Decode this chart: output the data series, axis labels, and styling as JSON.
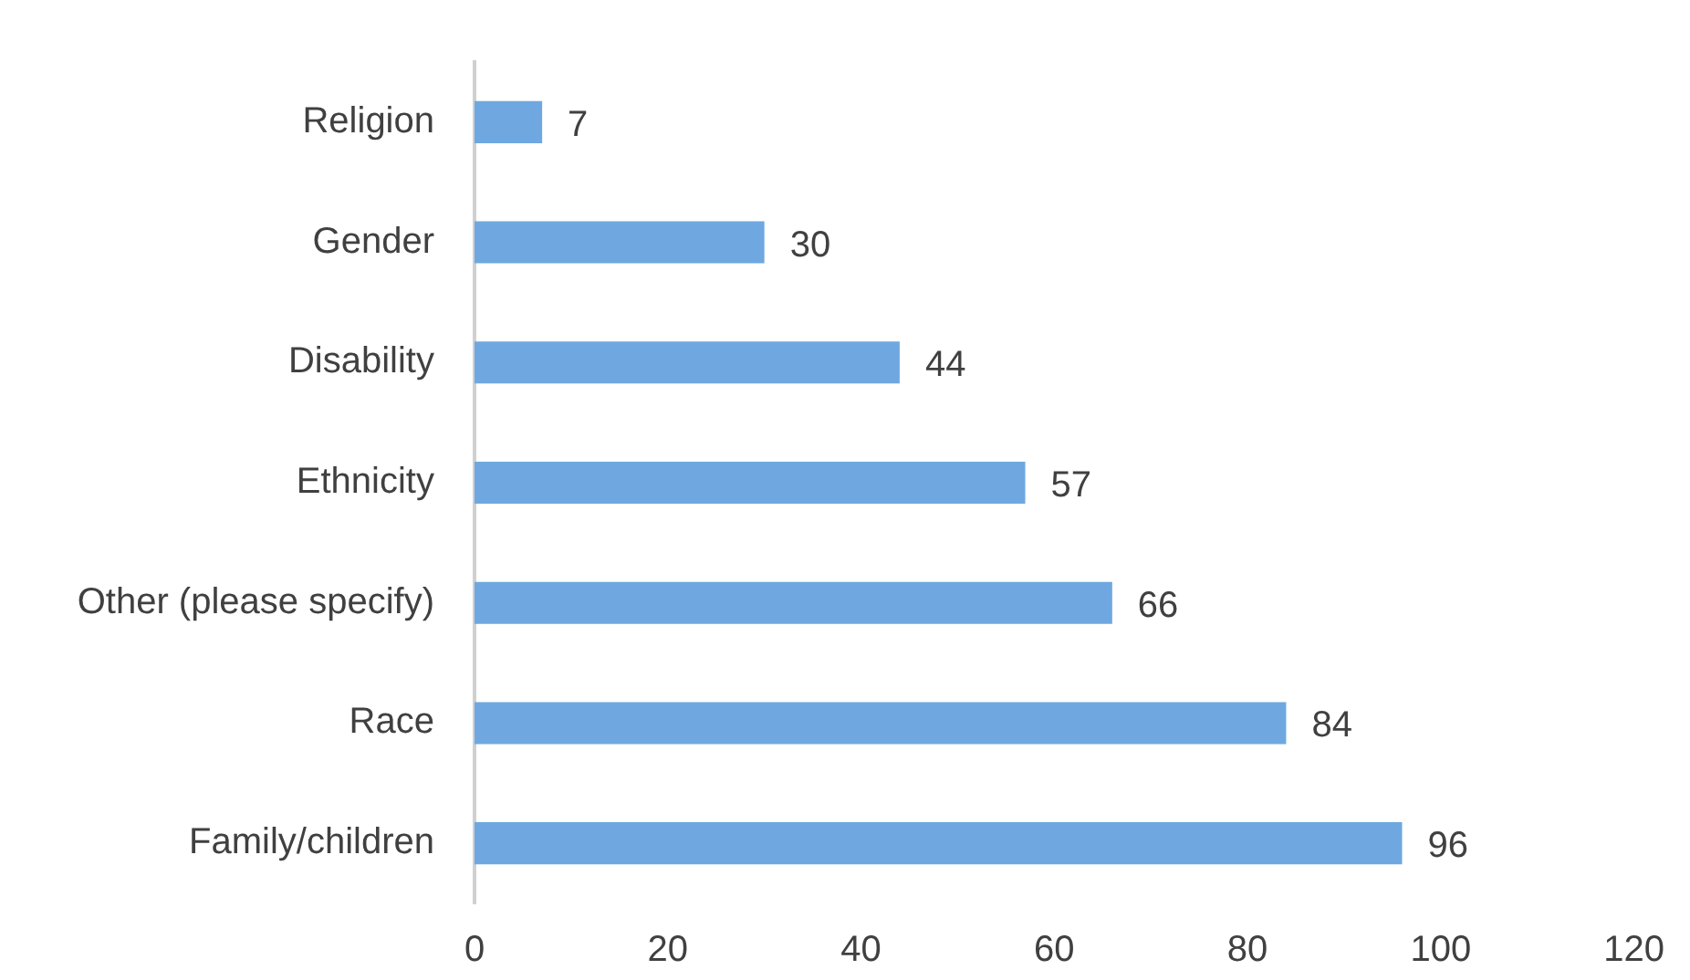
{
  "chart_data": {
    "type": "bar",
    "orientation": "horizontal",
    "categories": [
      "Religion",
      "Gender",
      "Disability",
      "Ethnicity",
      "Other (please specify)",
      "Race",
      "Family/children"
    ],
    "values": [
      7,
      30,
      44,
      57,
      66,
      84,
      96
    ],
    "color": "#6fa8e0",
    "xlim": [
      0,
      120
    ],
    "xticks": [
      0,
      20,
      40,
      60,
      80,
      100,
      120
    ],
    "grid": false,
    "legend": false,
    "data_labels": true
  }
}
